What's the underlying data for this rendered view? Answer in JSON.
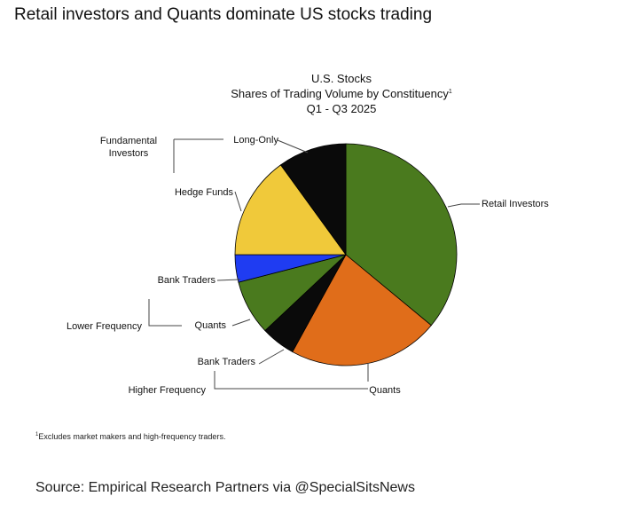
{
  "headline": "Retail investors and Quants dominate US stocks trading",
  "footnote": {
    "marker": "1",
    "text": "Excludes market makers and high-frequency traders."
  },
  "source": "Source:  Empirical Research Partners via @SpecialSitsNews",
  "chart_data": {
    "type": "pie",
    "title": "U.S. Stocks",
    "subtitle": "Shares of Trading Volume by Constituency",
    "subtitle_marker": "1",
    "period": "Q1 - Q3 2025",
    "start_angle_deg": 0,
    "direction": "clockwise",
    "slices": [
      {
        "label": "Retail Investors",
        "value": 36,
        "color": "#4a7a1e"
      },
      {
        "label": "Quants",
        "value": 22,
        "color": "#e06d1a"
      },
      {
        "label": "Bank Traders",
        "value": 5,
        "color": "#0a0a0a"
      },
      {
        "label": "Quants",
        "value": 8,
        "color": "#4a7a1e"
      },
      {
        "label": "Bank Traders",
        "value": 4,
        "color": "#1f3cf2"
      },
      {
        "label": "Hedge Funds",
        "value": 15,
        "color": "#f0c93a"
      },
      {
        "label": "Long-Only",
        "value": 10,
        "color": "#0a0a0a"
      }
    ],
    "groups": [
      {
        "label": "Higher Frequency"
      },
      {
        "label": "Lower Frequency"
      },
      {
        "label": "Fundamental Investors"
      }
    ]
  }
}
